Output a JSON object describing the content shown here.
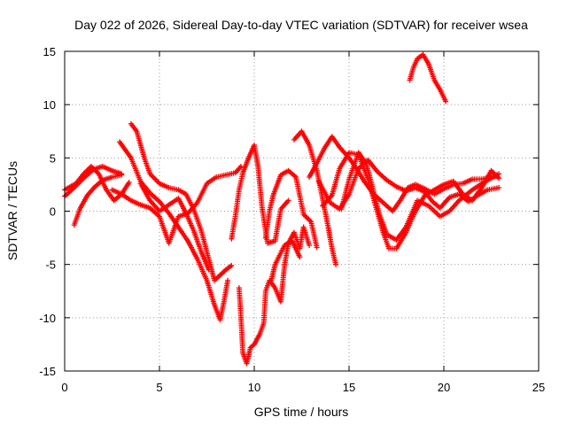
{
  "chart_data": {
    "type": "scatter",
    "title": "Day 022 of 2026, Sidereal Day-to-day VTEC variation (SDTVAR) for receiver wsea",
    "xlabel": "GPS time / hours",
    "ylabel": "SDTVAR / TECUs",
    "xlim": [
      0,
      25
    ],
    "ylim": [
      -15,
      15
    ],
    "xticks": [
      "0",
      "5",
      "10",
      "15",
      "20",
      "25"
    ],
    "yticks": [
      "15",
      "10",
      "5",
      "0",
      "-5",
      "-10",
      "-15"
    ],
    "grid": true,
    "marker": "+",
    "color": "#ff0000",
    "series": [
      {
        "name": "trace-1",
        "points": [
          [
            0.0,
            2.0
          ],
          [
            0.6,
            2.6
          ],
          [
            1.0,
            3.5
          ],
          [
            1.4,
            4.2
          ],
          [
            1.8,
            3.5
          ],
          [
            2.2,
            2.0
          ],
          [
            2.6,
            1.0
          ],
          [
            3.0,
            1.6
          ],
          [
            3.4,
            2.7
          ]
        ]
      },
      {
        "name": "trace-2",
        "points": [
          [
            0.0,
            1.4
          ],
          [
            0.5,
            2.2
          ],
          [
            1.0,
            3.1
          ],
          [
            1.5,
            3.9
          ],
          [
            2.0,
            4.2
          ],
          [
            2.5,
            3.8
          ],
          [
            3.0,
            3.5
          ]
        ]
      },
      {
        "name": "trace-3",
        "points": [
          [
            0.5,
            -1.3
          ],
          [
            0.8,
            0.2
          ],
          [
            1.2,
            1.5
          ],
          [
            1.6,
            2.3
          ],
          [
            2.0,
            2.9
          ],
          [
            2.5,
            3.2
          ],
          [
            3.0,
            3.4
          ]
        ]
      },
      {
        "name": "trace-4",
        "points": [
          [
            3.5,
            8.2
          ],
          [
            3.8,
            7.5
          ],
          [
            4.2,
            5.0
          ],
          [
            4.5,
            3.5
          ],
          [
            5.0,
            2.6
          ],
          [
            5.5,
            2.2
          ],
          [
            6.0,
            2.0
          ],
          [
            6.4,
            1.6
          ],
          [
            6.8,
            0.2
          ],
          [
            7.2,
            -1.8
          ],
          [
            7.6,
            -4.5
          ],
          [
            7.9,
            -6.5
          ],
          [
            8.2,
            -6.0
          ],
          [
            8.5,
            -5.5
          ],
          [
            8.8,
            -5.1
          ]
        ]
      },
      {
        "name": "trace-5",
        "points": [
          [
            2.9,
            6.5
          ],
          [
            3.5,
            5.0
          ],
          [
            4.0,
            2.8
          ],
          [
            4.5,
            1.7
          ],
          [
            5.0,
            0.9
          ],
          [
            5.5,
            -0.2
          ],
          [
            6.0,
            -1.5
          ],
          [
            6.5,
            -2.8
          ],
          [
            7.0,
            -4.5
          ],
          [
            7.5,
            -6.5
          ],
          [
            7.9,
            -8.8
          ],
          [
            8.2,
            -10.2
          ],
          [
            8.4,
            -8.5
          ],
          [
            8.6,
            -6.5
          ]
        ]
      },
      {
        "name": "trace-6",
        "points": [
          [
            2.5,
            2.0
          ],
          [
            3.0,
            1.6
          ],
          [
            3.5,
            1.0
          ],
          [
            4.0,
            0.6
          ],
          [
            4.5,
            0.3
          ],
          [
            5.0,
            -0.5
          ],
          [
            5.3,
            -2.0
          ],
          [
            5.5,
            -3.0
          ],
          [
            5.8,
            -1.5
          ],
          [
            6.0,
            -0.5
          ],
          [
            6.5,
            -0.2
          ],
          [
            7.0,
            0.8
          ],
          [
            7.5,
            2.6
          ],
          [
            8.0,
            3.2
          ],
          [
            8.5,
            3.4
          ],
          [
            9.0,
            3.6
          ],
          [
            9.3,
            4.2
          ]
        ]
      },
      {
        "name": "trace-7",
        "points": [
          [
            4.0,
            2.6
          ],
          [
            4.5,
            1.0
          ],
          [
            5.0,
            0.0
          ],
          [
            5.5,
            0.6
          ],
          [
            6.0,
            1.2
          ],
          [
            6.4,
            -0.2
          ],
          [
            6.8,
            -1.8
          ],
          [
            7.2,
            -3.8
          ],
          [
            7.6,
            -5.5
          ]
        ]
      },
      {
        "name": "trace-8",
        "points": [
          [
            9.2,
            -7.2
          ],
          [
            9.3,
            -10.0
          ],
          [
            9.4,
            -13.3
          ],
          [
            9.6,
            -14.3
          ],
          [
            9.8,
            -12.8
          ],
          [
            10.0,
            -12.5
          ],
          [
            10.3,
            -11.5
          ],
          [
            10.5,
            -10.5
          ],
          [
            10.6,
            -7.5
          ],
          [
            10.8,
            -6.5
          ],
          [
            11.1,
            -7.2
          ],
          [
            11.4,
            -8.5
          ],
          [
            11.6,
            -5.0
          ],
          [
            11.8,
            -3.0
          ],
          [
            12.1,
            -2.0
          ],
          [
            12.4,
            -3.5
          ],
          [
            12.6,
            -1.5
          ],
          [
            12.9,
            -3.2
          ]
        ]
      },
      {
        "name": "trace-9",
        "points": [
          [
            8.8,
            -2.6
          ],
          [
            9.0,
            -0.5
          ],
          [
            9.2,
            2.0
          ],
          [
            9.4,
            3.6
          ],
          [
            9.7,
            5.0
          ],
          [
            10.0,
            6.2
          ],
          [
            10.2,
            4.2
          ],
          [
            10.4,
            0.5
          ],
          [
            10.7,
            -3.0
          ],
          [
            11.1,
            -2.8
          ],
          [
            11.4,
            0.2
          ],
          [
            11.8,
            1.0
          ]
        ]
      },
      {
        "name": "trace-10",
        "points": [
          [
            10.6,
            -2.5
          ],
          [
            10.8,
            0.0
          ],
          [
            11.0,
            1.5
          ],
          [
            11.4,
            3.4
          ],
          [
            11.8,
            3.8
          ],
          [
            12.2,
            3.2
          ],
          [
            12.6,
            -0.3
          ],
          [
            13.0,
            -1.0
          ],
          [
            13.3,
            -3.4
          ]
        ]
      },
      {
        "name": "trace-11",
        "points": [
          [
            10.9,
            -6.5
          ],
          [
            11.1,
            -5.0
          ],
          [
            11.6,
            -3.2
          ],
          [
            12.0,
            -2.8
          ],
          [
            12.4,
            -4.3
          ]
        ]
      },
      {
        "name": "trace-12",
        "points": [
          [
            12.1,
            6.7
          ],
          [
            12.5,
            7.5
          ],
          [
            12.9,
            6.2
          ],
          [
            13.3,
            3.8
          ],
          [
            13.6,
            1.2
          ],
          [
            13.9,
            -1.5
          ],
          [
            14.1,
            -3.5
          ],
          [
            14.3,
            -5.0
          ]
        ]
      },
      {
        "name": "trace-13",
        "points": [
          [
            12.9,
            3.2
          ],
          [
            13.3,
            4.5
          ],
          [
            13.7,
            5.9
          ],
          [
            14.1,
            7.0
          ],
          [
            14.5,
            6.0
          ],
          [
            15.0,
            5.0
          ],
          [
            15.4,
            4.0
          ],
          [
            15.8,
            2.8
          ],
          [
            16.3,
            1.6
          ],
          [
            16.8,
            0.8
          ],
          [
            17.3,
            0.0
          ],
          [
            17.7,
            1.0
          ],
          [
            18.1,
            2.2
          ],
          [
            18.5,
            2.5
          ],
          [
            19.0,
            2.1
          ],
          [
            19.5,
            1.6
          ],
          [
            20.0,
            2.1
          ],
          [
            20.5,
            2.5
          ],
          [
            21.0,
            2.6
          ],
          [
            21.5,
            3.0
          ],
          [
            22.0,
            3.0
          ],
          [
            22.5,
            3.2
          ],
          [
            22.8,
            3.3
          ]
        ]
      },
      {
        "name": "trace-14",
        "points": [
          [
            13.6,
            0.5
          ],
          [
            14.1,
            1.5
          ],
          [
            14.5,
            4.0
          ],
          [
            15.0,
            5.5
          ],
          [
            15.5,
            5.3
          ],
          [
            16.0,
            3.0
          ],
          [
            16.4,
            0.5
          ],
          [
            16.8,
            -2.0
          ],
          [
            17.1,
            -3.5
          ],
          [
            17.5,
            -3.5
          ],
          [
            18.0,
            -2.0
          ],
          [
            18.5,
            0.0
          ],
          [
            19.0,
            1.5
          ],
          [
            19.5,
            2.0
          ],
          [
            20.0,
            2.5
          ],
          [
            20.5,
            2.8
          ],
          [
            21.0,
            1.6
          ],
          [
            21.5,
            1.0
          ],
          [
            22.0,
            2.2
          ],
          [
            22.5,
            3.8
          ],
          [
            22.9,
            3.1
          ]
        ]
      },
      {
        "name": "trace-15",
        "points": [
          [
            14.6,
            0.2
          ],
          [
            15.0,
            3.0
          ],
          [
            15.5,
            5.5
          ],
          [
            15.9,
            4.5
          ],
          [
            16.2,
            2.5
          ],
          [
            16.6,
            -0.3
          ],
          [
            17.0,
            -2.2
          ],
          [
            17.5,
            -2.7
          ],
          [
            18.0,
            -1.5
          ],
          [
            18.6,
            1.0
          ],
          [
            19.2,
            0.5
          ],
          [
            19.8,
            -0.5
          ],
          [
            20.3,
            0.0
          ],
          [
            20.8,
            1.0
          ],
          [
            21.5,
            2.0
          ],
          [
            22.2,
            2.8
          ],
          [
            22.9,
            3.5
          ]
        ]
      },
      {
        "name": "trace-16",
        "points": [
          [
            13.4,
            2.8
          ],
          [
            14.0,
            0.8
          ],
          [
            14.5,
            0.2
          ],
          [
            15.0,
            1.6
          ],
          [
            15.5,
            4.0
          ],
          [
            16.0,
            4.8
          ],
          [
            16.5,
            3.7
          ],
          [
            17.0,
            2.9
          ],
          [
            17.5,
            2.3
          ],
          [
            18.0,
            1.9
          ],
          [
            18.5,
            2.2
          ],
          [
            19.0,
            1.8
          ],
          [
            19.4,
            0.9
          ],
          [
            19.8,
            0.3
          ],
          [
            20.3,
            1.3
          ],
          [
            20.8,
            1.6
          ],
          [
            21.3,
            0.9
          ],
          [
            21.8,
            1.5
          ],
          [
            22.3,
            2.0
          ],
          [
            22.9,
            2.2
          ]
        ]
      },
      {
        "name": "trace-17",
        "points": [
          [
            18.2,
            12.3
          ],
          [
            18.4,
            13.5
          ],
          [
            18.6,
            14.3
          ],
          [
            18.9,
            14.7
          ],
          [
            19.2,
            13.8
          ],
          [
            19.5,
            12.3
          ],
          [
            19.8,
            11.4
          ],
          [
            20.1,
            10.3
          ]
        ]
      }
    ]
  }
}
